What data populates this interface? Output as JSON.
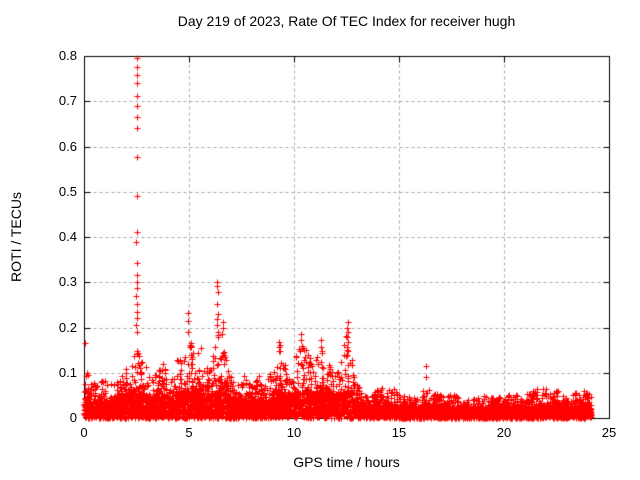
{
  "chart_data": {
    "type": "scatter",
    "title": "Day 219 of 2023, Rate Of TEC Index for receiver hugh",
    "xlabel": "GPS time / hours",
    "ylabel": "ROTI / TECUs",
    "xlim": [
      0,
      25
    ],
    "ylim": [
      0,
      0.8
    ],
    "xticks": [
      0,
      5,
      10,
      15,
      20,
      25
    ],
    "xtick_labels": [
      "0",
      "5",
      "10",
      "15",
      "20",
      "25"
    ],
    "yticks": [
      0,
      0.1,
      0.2,
      0.3,
      0.4,
      0.5,
      0.6,
      0.7,
      0.8
    ],
    "ytick_labels": [
      "0",
      "0.1",
      "0.2",
      "0.3",
      "0.4",
      "0.5",
      "0.6",
      "0.7",
      "0.8"
    ],
    "grid": true,
    "legend": "none",
    "marker": "plus",
    "marker_color": "#ff0000",
    "axis_color": "#000000",
    "grid_color": "#a9a9a9",
    "background": "#ffffff",
    "series_name": "ROTI",
    "time_span_hours": [
      0,
      24.15
    ],
    "envelope_max_by_hour": [
      [
        0.0,
        0.11
      ],
      [
        0.3,
        0.075
      ],
      [
        0.8,
        0.095
      ],
      [
        1.2,
        0.075
      ],
      [
        1.6,
        0.09
      ],
      [
        2.0,
        0.11
      ],
      [
        2.3,
        0.165
      ],
      [
        2.55,
        0.175
      ],
      [
        2.8,
        0.12
      ],
      [
        3.2,
        0.1
      ],
      [
        3.75,
        0.125
      ],
      [
        4.1,
        0.1
      ],
      [
        4.5,
        0.135
      ],
      [
        4.95,
        0.17
      ],
      [
        5.2,
        0.155
      ],
      [
        5.5,
        0.14
      ],
      [
        5.8,
        0.11
      ],
      [
        6.1,
        0.13
      ],
      [
        6.35,
        0.19
      ],
      [
        6.6,
        0.16
      ],
      [
        7.0,
        0.09
      ],
      [
        7.5,
        0.1
      ],
      [
        8.0,
        0.075
      ],
      [
        8.3,
        0.095
      ],
      [
        8.7,
        0.08
      ],
      [
        9.0,
        0.11
      ],
      [
        9.3,
        0.17
      ],
      [
        9.7,
        0.095
      ],
      [
        10.0,
        0.13
      ],
      [
        10.35,
        0.185
      ],
      [
        10.7,
        0.145
      ],
      [
        11.0,
        0.13
      ],
      [
        11.3,
        0.17
      ],
      [
        11.7,
        0.12
      ],
      [
        12.0,
        0.11
      ],
      [
        12.25,
        0.135
      ],
      [
        12.55,
        0.21
      ],
      [
        12.85,
        0.1
      ],
      [
        13.2,
        0.06
      ],
      [
        13.6,
        0.05
      ],
      [
        14.0,
        0.065
      ],
      [
        14.5,
        0.075
      ],
      [
        15.0,
        0.055
      ],
      [
        15.5,
        0.045
      ],
      [
        16.0,
        0.055
      ],
      [
        16.3,
        0.065
      ],
      [
        17.0,
        0.05
      ],
      [
        17.5,
        0.055
      ],
      [
        18.0,
        0.045
      ],
      [
        18.5,
        0.042
      ],
      [
        19.0,
        0.05
      ],
      [
        19.5,
        0.045
      ],
      [
        20.0,
        0.052
      ],
      [
        20.5,
        0.055
      ],
      [
        21.0,
        0.05
      ],
      [
        21.5,
        0.065
      ],
      [
        22.0,
        0.07
      ],
      [
        22.5,
        0.062
      ],
      [
        23.0,
        0.052
      ],
      [
        23.5,
        0.058
      ],
      [
        24.0,
        0.062
      ],
      [
        24.15,
        0.05
      ]
    ],
    "outlier_points": [
      [
        0.05,
        0.165
      ],
      [
        0.12,
        0.1
      ],
      [
        0.18,
        0.095
      ],
      [
        2.5,
        0.795
      ],
      [
        2.52,
        0.775
      ],
      [
        2.51,
        0.757
      ],
      [
        2.53,
        0.74
      ],
      [
        2.5,
        0.712
      ],
      [
        2.52,
        0.69
      ],
      [
        2.51,
        0.665
      ],
      [
        2.53,
        0.64
      ],
      [
        2.5,
        0.576
      ],
      [
        2.52,
        0.49
      ],
      [
        2.51,
        0.412
      ],
      [
        2.49,
        0.39
      ],
      [
        2.52,
        0.342
      ],
      [
        2.5,
        0.315
      ],
      [
        2.53,
        0.3
      ],
      [
        2.51,
        0.287
      ],
      [
        2.49,
        0.27
      ],
      [
        2.52,
        0.252
      ],
      [
        2.5,
        0.235
      ],
      [
        2.51,
        0.22
      ],
      [
        2.48,
        0.205
      ],
      [
        2.54,
        0.19
      ],
      [
        4.95,
        0.232
      ],
      [
        4.93,
        0.215
      ],
      [
        4.97,
        0.19
      ],
      [
        5.1,
        0.165
      ],
      [
        5.55,
        0.155
      ],
      [
        6.35,
        0.3
      ],
      [
        6.33,
        0.292
      ],
      [
        6.36,
        0.278
      ],
      [
        6.34,
        0.252
      ],
      [
        6.37,
        0.23
      ],
      [
        6.35,
        0.218
      ],
      [
        6.33,
        0.205
      ],
      [
        6.36,
        0.19
      ],
      [
        6.38,
        0.178
      ],
      [
        6.6,
        0.212
      ],
      [
        6.62,
        0.198
      ],
      [
        6.58,
        0.185
      ],
      [
        9.3,
        0.168
      ],
      [
        9.28,
        0.158
      ],
      [
        9.32,
        0.148
      ],
      [
        10.35,
        0.185
      ],
      [
        10.33,
        0.172
      ],
      [
        10.37,
        0.16
      ],
      [
        10.3,
        0.148
      ],
      [
        11.3,
        0.172
      ],
      [
        11.28,
        0.158
      ],
      [
        11.32,
        0.148
      ],
      [
        12.55,
        0.212
      ],
      [
        12.53,
        0.2
      ],
      [
        12.57,
        0.19
      ],
      [
        12.5,
        0.178
      ],
      [
        12.55,
        0.168
      ],
      [
        12.52,
        0.158
      ],
      [
        12.58,
        0.148
      ],
      [
        12.54,
        0.14
      ],
      [
        16.28,
        0.115
      ],
      [
        16.3,
        0.09
      ]
    ],
    "generation": {
      "seed": 20230219,
      "n_points": 7000,
      "t_max": 24.15,
      "solid_band_cap": 0.055,
      "solid_band_min": 0.02,
      "solid_band_frac": 0.4,
      "solid_share": 0.72,
      "tail_pow": 2.6,
      "marker_half_px": 3
    }
  }
}
